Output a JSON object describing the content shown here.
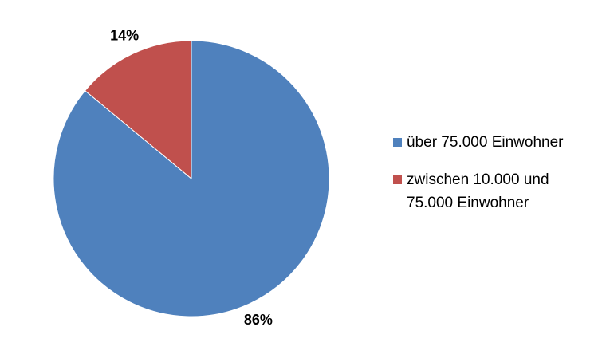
{
  "chart_data": {
    "type": "pie",
    "title": "",
    "slices": [
      {
        "label": "über 75.000 Einwohner",
        "value": 86,
        "display": "86%",
        "color": "#4f81bd"
      },
      {
        "label": "zwischen 10.000 und 75.000 Einwohner",
        "value": 14,
        "display": "14%",
        "color": "#c0504d"
      }
    ],
    "start_angle": "12 o'clock",
    "direction": "clockwise",
    "legend_position": "right"
  }
}
